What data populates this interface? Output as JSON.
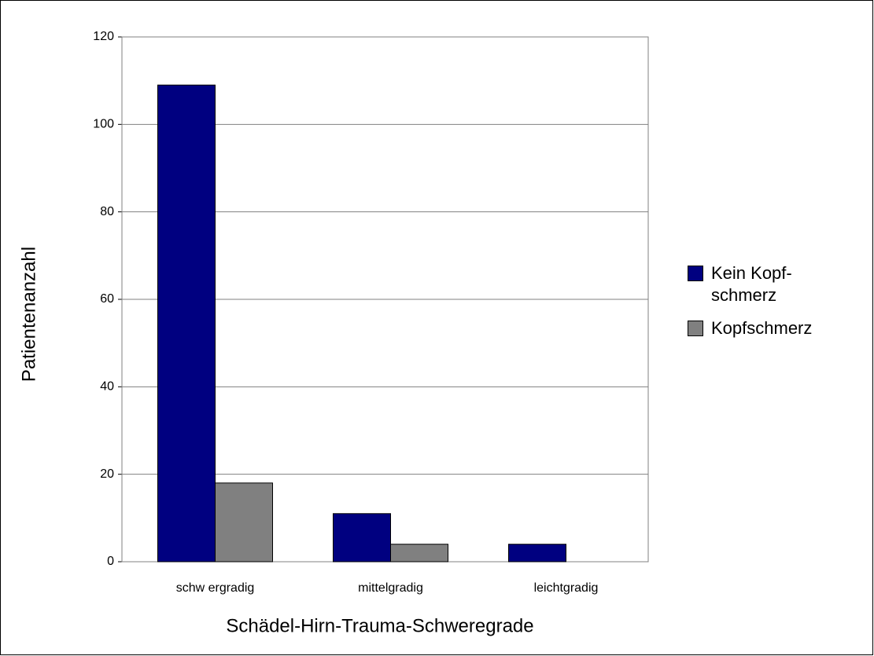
{
  "chart_data": {
    "type": "bar",
    "categories": [
      "schw ergradig",
      "mittelgradig",
      "leichtgradig"
    ],
    "series": [
      {
        "name": "Kein Kopf-schmerz",
        "color": "#000080",
        "values": [
          109,
          11,
          4
        ]
      },
      {
        "name": "Kopfschmerz",
        "color": "#808080",
        "values": [
          18,
          4,
          0
        ]
      }
    ],
    "x_label": "Schädel-Hirn-Trauma-Schweregrade",
    "y_label": "Patientenanzahl",
    "ylim": [
      0,
      120
    ],
    "yticks": [
      0,
      20,
      40,
      60,
      80,
      100,
      120
    ],
    "grid": true,
    "legend": "right"
  }
}
